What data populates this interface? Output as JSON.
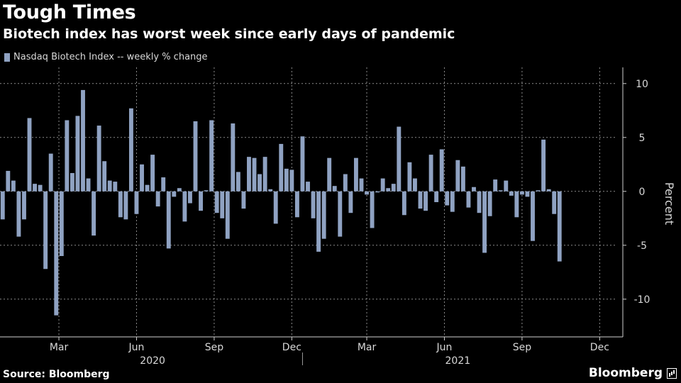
{
  "title": "Tough Times",
  "subtitle": "Biotech index has worst week since early days of pandemic",
  "source": "Source: Bloomberg",
  "brand": "Bloomberg",
  "colors": {
    "bar": "#8fa2c2",
    "background": "#000000",
    "grid": "#8a8a8a",
    "text": "#ffffff"
  },
  "chart_data": {
    "type": "bar",
    "title": "Tough Times",
    "subtitle": "Biotech index has worst week since early days of pandemic",
    "legend": [
      "Nasdaq Biotech Index -- weekly % change"
    ],
    "legend_position": "top-left",
    "ylabel": "Percent",
    "ylim": [
      -13.5,
      11.5
    ],
    "yticks": [
      10,
      5,
      0,
      -5,
      -10
    ],
    "ytick_labels": [
      "10",
      "5",
      "0",
      "-5",
      "-10"
    ],
    "grid": true,
    "x_range": [
      0,
      115
    ],
    "xtick_positions": [
      11,
      25.5,
      40,
      54.5,
      68.5,
      83,
      97.5,
      112
    ],
    "xtick_labels": [
      "Mar",
      "Jun",
      "Sep",
      "Dec",
      "Mar",
      "Jun",
      "Sep",
      "Dec"
    ],
    "year_labels": [
      {
        "label": "2020",
        "position": 28.5
      },
      {
        "label": "2021",
        "position": 85.5
      }
    ],
    "year_divider": 56.5,
    "series": [
      {
        "name": "Nasdaq Biotech Index -- weekly % change",
        "values": [
          -2.6,
          1.9,
          1.0,
          -4.2,
          -2.6,
          6.8,
          0.7,
          0.6,
          -7.2,
          3.5,
          -11.5,
          -6.0,
          6.6,
          1.7,
          7.0,
          9.4,
          1.2,
          -4.1,
          6.1,
          2.8,
          1.0,
          0.9,
          -2.4,
          -2.6,
          7.7,
          -2.1,
          2.5,
          0.6,
          3.4,
          -1.4,
          1.3,
          -5.3,
          -0.5,
          0.3,
          -2.8,
          -1.1,
          6.5,
          -1.8,
          0.1,
          6.6,
          -2.0,
          -2.5,
          -4.4,
          6.3,
          1.8,
          -1.6,
          3.2,
          3.1,
          1.6,
          3.2,
          0.2,
          -3.0,
          4.4,
          2.1,
          2.0,
          -2.4,
          5.1,
          0.9,
          -2.5,
          -5.6,
          -4.4,
          3.1,
          0.5,
          -4.2,
          1.6,
          -2.0,
          3.1,
          1.2,
          -0.3,
          -3.4,
          -0.1,
          1.2,
          0.3,
          0.7,
          6.0,
          -2.2,
          2.7,
          1.2,
          -1.6,
          -1.8,
          3.4,
          -1.0,
          3.9,
          -1.3,
          -1.9,
          2.9,
          2.3,
          -1.5,
          0.4,
          -2.0,
          -5.7,
          -2.3,
          1.1,
          0.1,
          1.0,
          -0.4,
          -2.4,
          -0.3,
          -0.5,
          -4.6,
          0.1,
          4.8,
          0.2,
          -2.1,
          -6.5
        ]
      }
    ]
  }
}
